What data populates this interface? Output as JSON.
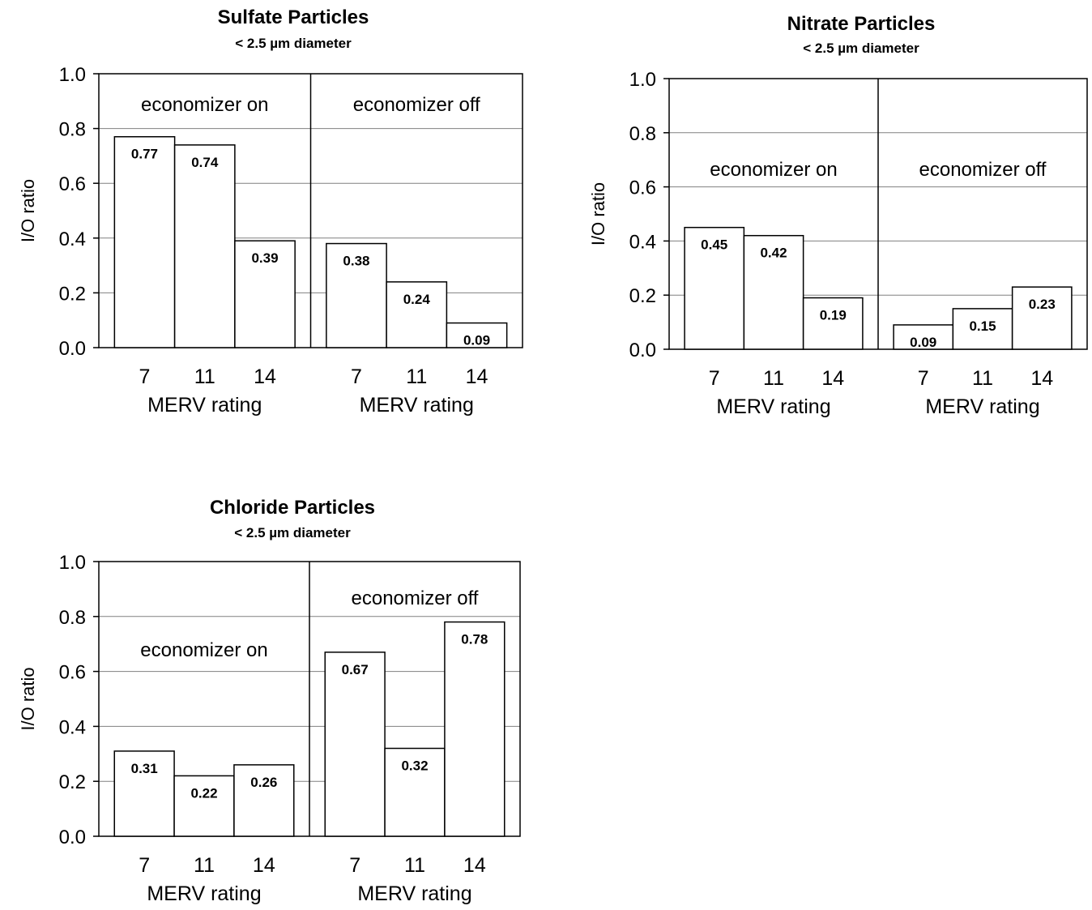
{
  "chart_data": [
    {
      "type": "bar",
      "title": "Sulfate Particles",
      "subtitle": "< 2.5 µm diameter",
      "ylabel": "I/O ratio",
      "ylim": [
        0,
        1.0
      ],
      "yticks": [
        "0.0",
        "0.2",
        "0.4",
        "0.6",
        "0.8",
        "1.0"
      ],
      "grid": true,
      "groups": [
        {
          "name": "economizer on",
          "xlabel": "MERV rating",
          "categories": [
            "7",
            "11",
            "14"
          ],
          "values": [
            0.77,
            0.74,
            0.39
          ],
          "labels": [
            "0.77",
            "0.74",
            "0.39"
          ]
        },
        {
          "name": "economizer off",
          "xlabel": "MERV rating",
          "categories": [
            "7",
            "11",
            "14"
          ],
          "values": [
            0.38,
            0.24,
            0.09
          ],
          "labels": [
            "0.38",
            "0.24",
            "0.09"
          ]
        }
      ]
    },
    {
      "type": "bar",
      "title": "Nitrate Particles",
      "subtitle": "< 2.5 µm diameter",
      "ylabel": "I/O ratio",
      "ylim": [
        0,
        1.0
      ],
      "yticks": [
        "0.0",
        "0.2",
        "0.4",
        "0.6",
        "0.8",
        "1.0"
      ],
      "grid": true,
      "groups": [
        {
          "name": "economizer on",
          "xlabel": "MERV rating",
          "categories": [
            "7",
            "11",
            "14"
          ],
          "values": [
            0.45,
            0.42,
            0.19
          ],
          "labels": [
            "0.45",
            "0.42",
            "0.19"
          ]
        },
        {
          "name": "economizer off",
          "xlabel": "MERV rating",
          "categories": [
            "7",
            "11",
            "14"
          ],
          "values": [
            0.09,
            0.15,
            0.23
          ],
          "labels": [
            "0.09",
            "0.15",
            "0.23"
          ]
        }
      ]
    },
    {
      "type": "bar",
      "title": "Chloride Particles",
      "subtitle": "< 2.5 µm diameter",
      "ylabel": "I/O ratio",
      "ylim": [
        0,
        1.0
      ],
      "yticks": [
        "0.0",
        "0.2",
        "0.4",
        "0.6",
        "0.8",
        "1.0"
      ],
      "grid": true,
      "groups": [
        {
          "name": "economizer on",
          "xlabel": "MERV rating",
          "categories": [
            "7",
            "11",
            "14"
          ],
          "values": [
            0.31,
            0.22,
            0.26
          ],
          "labels": [
            "0.31",
            "0.22",
            "0.26"
          ]
        },
        {
          "name": "economizer off",
          "xlabel": "MERV rating",
          "categories": [
            "7",
            "11",
            "14"
          ],
          "values": [
            0.67,
            0.32,
            0.78
          ],
          "labels": [
            "0.67",
            "0.32",
            "0.78"
          ]
        }
      ]
    }
  ]
}
